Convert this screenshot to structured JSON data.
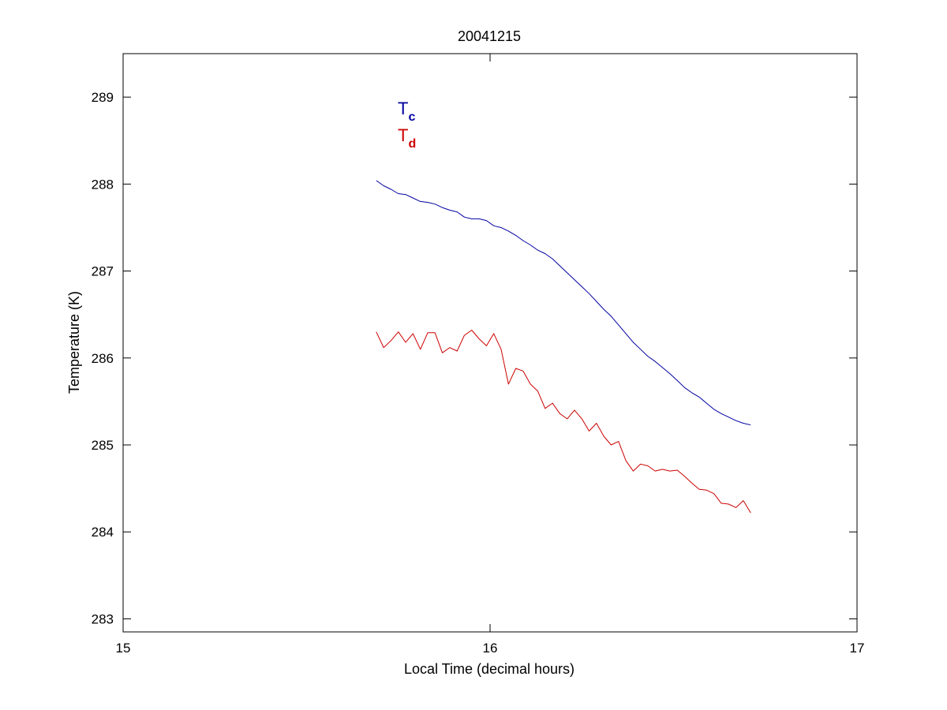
{
  "chart_data": {
    "type": "line",
    "title": "20041215",
    "xlabel": "Local Time (decimal hours)",
    "ylabel": "Temperature (K)",
    "xlim": [
      15,
      17
    ],
    "ylim": [
      282.85,
      289.5
    ],
    "xticks": [
      15,
      16,
      17
    ],
    "yticks": [
      283,
      284,
      285,
      286,
      287,
      288,
      289
    ],
    "grid": false,
    "legend_position": "top-left",
    "colors": {
      "tc": "#0000a0",
      "td": "#cc0000",
      "axis": "#000000"
    },
    "legend": [
      {
        "main": "T",
        "sub": "c",
        "color": "#0000a0"
      },
      {
        "main": "T",
        "sub": "d",
        "color": "#cc0000"
      }
    ],
    "series": [
      {
        "color": "#0000a0",
        "x": [
          15.69,
          15.71,
          15.73,
          15.75,
          15.77,
          15.79,
          15.81,
          15.83,
          15.85,
          15.87,
          15.89,
          15.91,
          15.93,
          15.95,
          15.97,
          15.99,
          16.01,
          16.03,
          16.05,
          16.07,
          16.09,
          16.11,
          16.13,
          16.15,
          16.17,
          16.19,
          16.21,
          16.23,
          16.25,
          16.27,
          16.29,
          16.31,
          16.33,
          16.35,
          16.37,
          16.39,
          16.41,
          16.43,
          16.45,
          16.47,
          16.49,
          16.51,
          16.53,
          16.55,
          16.57,
          16.59,
          16.61,
          16.63,
          16.65,
          16.67,
          16.69,
          16.71
        ],
        "values": [
          288.04,
          287.98,
          287.94,
          287.89,
          287.88,
          287.84,
          287.8,
          287.79,
          287.77,
          287.73,
          287.7,
          287.68,
          287.62,
          287.6,
          287.6,
          287.58,
          287.52,
          287.5,
          287.46,
          287.41,
          287.35,
          287.3,
          287.24,
          287.2,
          287.14,
          287.06,
          286.98,
          286.9,
          286.82,
          286.74,
          286.65,
          286.56,
          286.48,
          286.38,
          286.28,
          286.18,
          286.1,
          286.02,
          285.96,
          285.89,
          285.82,
          285.74,
          285.66,
          285.6,
          285.55,
          285.48,
          285.41,
          285.36,
          285.32,
          285.28,
          285.25,
          285.23
        ]
      },
      {
        "color": "#cc0000",
        "x": [
          15.69,
          15.71,
          15.73,
          15.75,
          15.77,
          15.79,
          15.81,
          15.83,
          15.85,
          15.87,
          15.89,
          15.91,
          15.93,
          15.95,
          15.97,
          15.99,
          16.01,
          16.03,
          16.05,
          16.07,
          16.09,
          16.11,
          16.13,
          16.15,
          16.17,
          16.19,
          16.21,
          16.23,
          16.25,
          16.27,
          16.29,
          16.31,
          16.33,
          16.35,
          16.37,
          16.39,
          16.41,
          16.43,
          16.45,
          16.47,
          16.49,
          16.51,
          16.53,
          16.55,
          16.57,
          16.59,
          16.61,
          16.63,
          16.65,
          16.67,
          16.69,
          16.71
        ],
        "values": [
          286.3,
          286.12,
          286.2,
          286.3,
          286.18,
          286.28,
          286.1,
          286.29,
          286.29,
          286.06,
          286.12,
          286.08,
          286.26,
          286.32,
          286.22,
          286.14,
          286.28,
          286.1,
          285.7,
          285.88,
          285.85,
          285.7,
          285.62,
          285.42,
          285.48,
          285.36,
          285.3,
          285.4,
          285.3,
          285.16,
          285.25,
          285.1,
          285.0,
          285.04,
          284.82,
          284.7,
          284.78,
          284.76,
          284.7,
          284.72,
          284.7,
          284.71,
          284.64,
          284.56,
          284.49,
          284.48,
          284.44,
          284.33,
          284.32,
          284.28,
          284.36,
          284.22
        ]
      }
    ]
  }
}
